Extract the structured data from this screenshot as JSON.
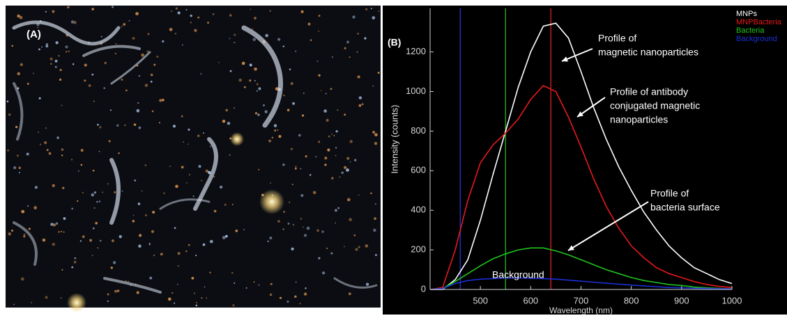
{
  "image_label": "(A)",
  "chart_data": {
    "type": "line",
    "title": "(B)",
    "x_label": "Wavelength (nm)",
    "y_label": "Intensity (counts)",
    "x": [
      400,
      425,
      450,
      475,
      500,
      525,
      550,
      575,
      600,
      625,
      650,
      675,
      700,
      725,
      750,
      775,
      800,
      825,
      850,
      875,
      900,
      925,
      950,
      975,
      1000
    ],
    "series": [
      {
        "name": "MNPs",
        "color": "#ffffff",
        "values": [
          0,
          0,
          50,
          150,
          350,
          580,
          800,
          1020,
          1200,
          1330,
          1345,
          1270,
          1100,
          920,
          760,
          620,
          500,
          390,
          300,
          220,
          160,
          110,
          80,
          50,
          30
        ]
      },
      {
        "name": "MNPBacteria",
        "color": "#e8191b",
        "values": [
          0,
          10,
          200,
          450,
          640,
          730,
          790,
          860,
          960,
          1030,
          1000,
          870,
          720,
          560,
          420,
          310,
          220,
          160,
          110,
          80,
          60,
          40,
          25,
          15,
          10
        ]
      },
      {
        "name": "Bacteria",
        "color": "#1fc41f",
        "values": [
          0,
          5,
          40,
          80,
          120,
          155,
          180,
          200,
          210,
          210,
          195,
          175,
          150,
          125,
          100,
          80,
          60,
          45,
          35,
          25,
          20,
          12,
          8,
          5,
          3
        ]
      },
      {
        "name": "Background",
        "color": "#1a2fd6",
        "values": [
          0,
          5,
          30,
          45,
          52,
          55,
          58,
          58,
          57,
          55,
          52,
          47,
          42,
          37,
          32,
          27,
          22,
          18,
          14,
          10,
          8,
          6,
          5,
          4,
          3
        ]
      }
    ],
    "markers": [
      {
        "x": 460,
        "color": "#2233dd"
      },
      {
        "x": 550,
        "color": "#22bb22"
      },
      {
        "x": 640,
        "color": "#dd2222"
      }
    ],
    "annotations": [
      {
        "lines": [
          "Profile of",
          "magnetic nanoparticles"
        ]
      },
      {
        "lines": [
          "Profile of antibody",
          " conjugated magnetic",
          "nanoparticles"
        ]
      },
      {
        "lines": [
          "Profile of",
          "bacteria surface"
        ]
      },
      {
        "lines": [
          "Background"
        ]
      }
    ],
    "xlim": [
      400,
      1000
    ],
    "ylim": [
      0,
      1420
    ],
    "xticks": [
      500,
      600,
      700,
      800,
      900,
      1000
    ],
    "yticks": [
      0,
      200,
      400,
      600,
      800,
      1000,
      1200
    ]
  }
}
